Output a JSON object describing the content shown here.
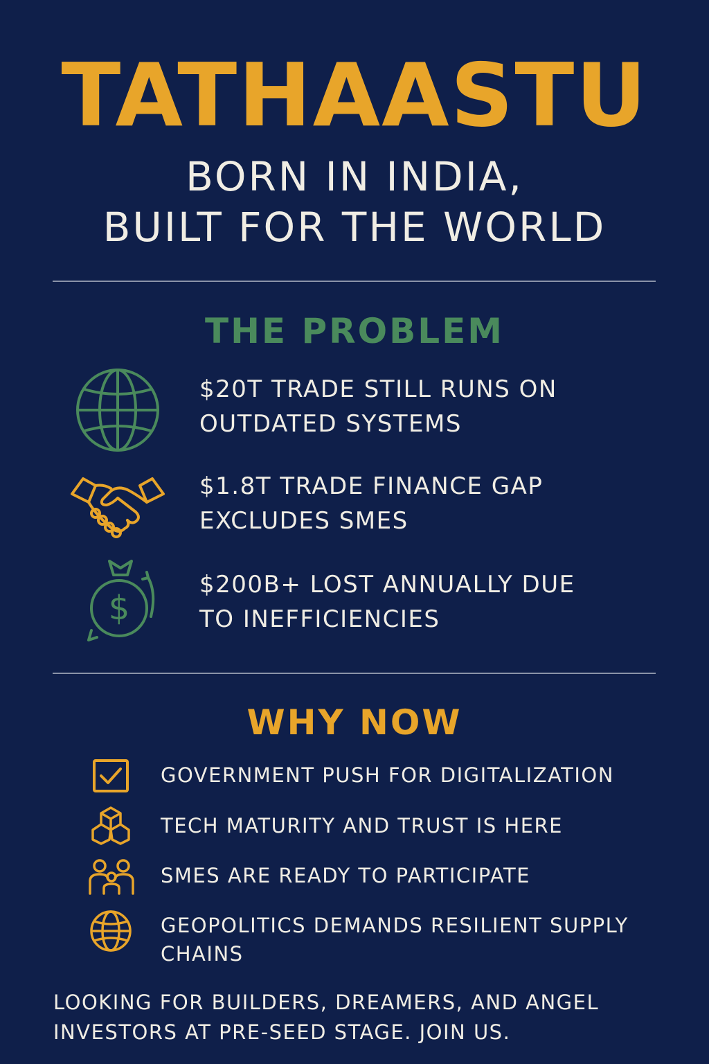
{
  "header": {
    "title": "TATHAASTU",
    "subtitle_line1": "BORN IN INDIA,",
    "subtitle_line2": "BUILT FOR THE WORLD"
  },
  "problem": {
    "heading": "THE PROBLEM",
    "items": [
      {
        "icon": "globe-icon",
        "line1": "$20T TRADE STILL RUNS ON",
        "line2": "OUTDATED SYSTEMS"
      },
      {
        "icon": "handshake-icon",
        "line1": "$1.8T TRADE FINANCE GAP",
        "line2": "EXCLUDES SMES"
      },
      {
        "icon": "money-bag-icon",
        "line1": "$200B+ LOST ANNUALLY DUE",
        "line2": "TO INEFFICIENCIES"
      }
    ]
  },
  "why_now": {
    "heading": "WHY NOW",
    "items": [
      {
        "icon": "checkbox-icon",
        "line1": "GOVERNMENT PUSH FOR DIGITALIZATION",
        "line2": ""
      },
      {
        "icon": "blocks-icon",
        "line1": "TECH MATURITY AND TRUST IS HERE",
        "line2": ""
      },
      {
        "icon": "people-icon",
        "line1": "SMES ARE READY TO PARTICIPATE",
        "line2": ""
      },
      {
        "icon": "globe-icon",
        "line1": "GEOPOLITICS DEMANDS RESILIENT SUPPLY",
        "line2": "CHAINS"
      }
    ]
  },
  "footer": {
    "line1": "LOOKING FOR BUILDERS, DREAMERS, AND ANGEL",
    "line2": "INVESTORS AT PRE-SEED STAGE. JOIN US."
  },
  "colors": {
    "background": "#0f1f4a",
    "gold": "#e8a52a",
    "green": "#4a8a5c",
    "text": "#f0ede4",
    "divider": "#8a93a8"
  }
}
